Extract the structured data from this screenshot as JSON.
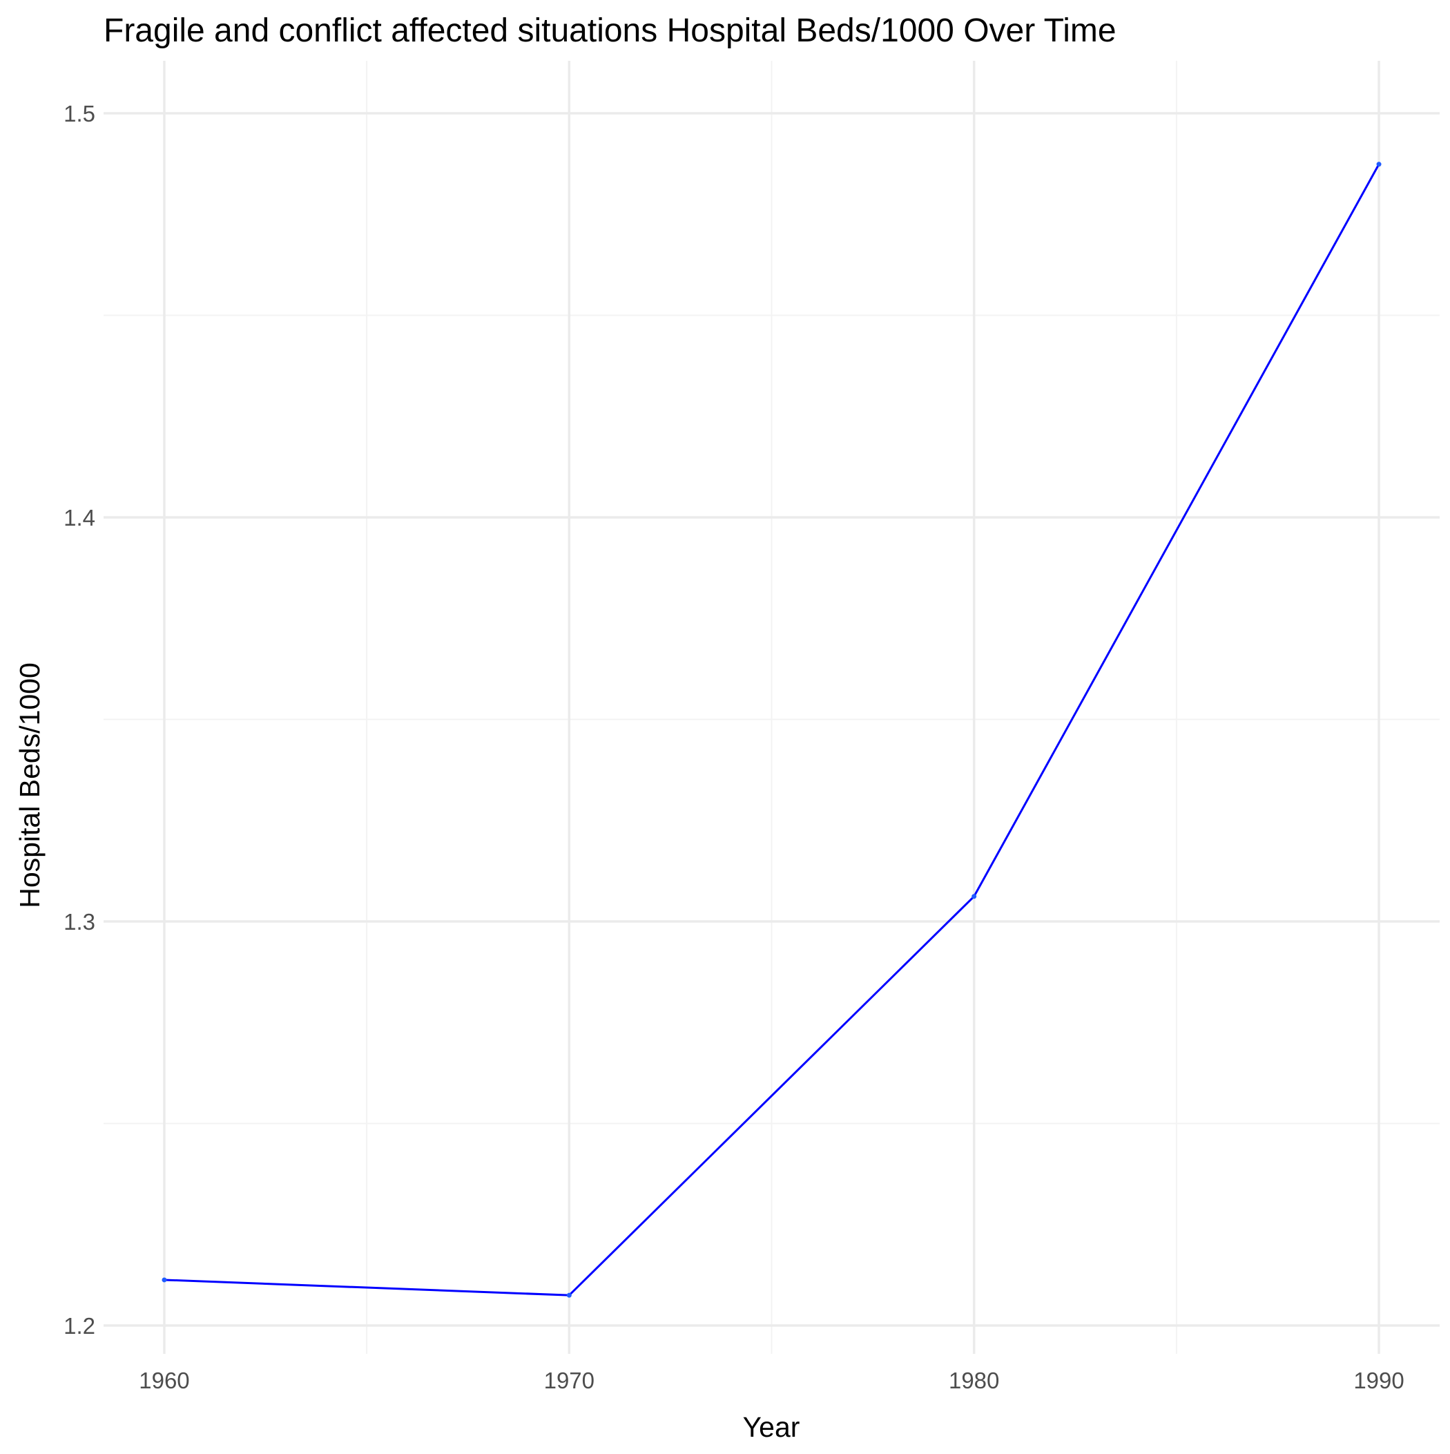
{
  "chart_data": {
    "type": "line",
    "title": "Fragile and conflict affected situations Hospital Beds/1000 Over Time",
    "xlabel": "Year",
    "ylabel": "Hospital Beds/1000",
    "x": [
      1960,
      1970,
      1980,
      1990
    ],
    "series": [
      {
        "values": [
          1.2113,
          1.2075,
          1.3062,
          1.4874
        ]
      }
    ],
    "xlim": [
      1958.5,
      1991.5
    ],
    "ylim": [
      1.193,
      1.513
    ],
    "x_ticks": [
      1960,
      1970,
      1980,
      1990
    ],
    "x_tick_labels": [
      "1960",
      "1970",
      "1980",
      "1990"
    ],
    "y_ticks": [
      1.2,
      1.3,
      1.4,
      1.5
    ],
    "y_tick_labels": [
      "1.2",
      "1.3",
      "1.4",
      "1.5"
    ],
    "x_minor_ticks": [
      1965,
      1975,
      1985
    ],
    "y_minor_ticks": [
      1.25,
      1.35,
      1.45
    ],
    "grid": true,
    "line_color": "#0000ff",
    "legend": "none"
  }
}
